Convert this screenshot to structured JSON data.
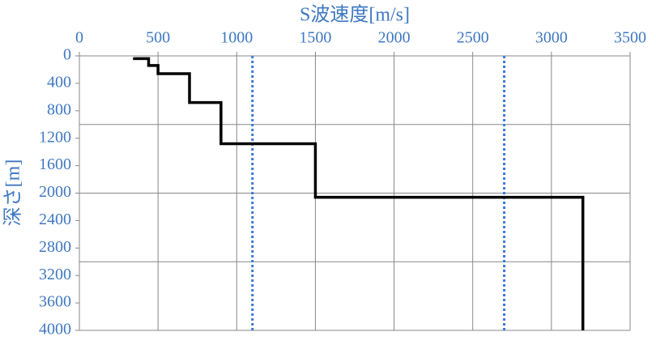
{
  "chart_data": {
    "type": "line",
    "xlabel": "S波速度[m/s]",
    "ylabel": "深さ[m]",
    "xlim": [
      0,
      3500
    ],
    "xticks": [
      0,
      500,
      1000,
      1500,
      2000,
      2500,
      3000,
      3500
    ],
    "ylim": [
      0,
      4000
    ],
    "yticks": [
      0,
      400,
      800,
      1200,
      1600,
      2000,
      2400,
      2800,
      3200,
      3600,
      4000
    ],
    "y_inverted": true,
    "x_axis_position": "top",
    "grid": true,
    "y_gridlines": [
      1000,
      2000,
      3000
    ],
    "series": [
      {
        "color": "#000000",
        "x": [
          350,
          350,
          440,
          440,
          500,
          500,
          700,
          700,
          900,
          900,
          1500,
          1500,
          3200,
          3200
        ],
        "values": [
          20,
          40,
          40,
          140,
          140,
          260,
          260,
          680,
          680,
          1280,
          1280,
          2060,
          2060,
          4000
        ]
      }
    ],
    "reference_lines": {
      "x": [
        1100,
        2700
      ],
      "color": "#3c78d8",
      "style": "dotted"
    }
  }
}
